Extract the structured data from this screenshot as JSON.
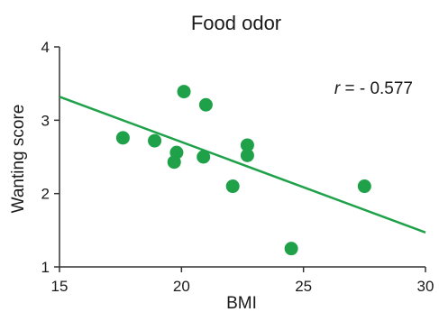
{
  "chart_data": {
    "type": "scatter",
    "title": "Food odor",
    "xlabel": "BMI",
    "ylabel": "Wanting score",
    "xlim": [
      15,
      30
    ],
    "ylim": [
      1,
      4
    ],
    "xticks": [
      15,
      20,
      25,
      30
    ],
    "yticks": [
      1,
      2,
      3,
      4
    ],
    "grid": false,
    "point_color": "#1fa14a",
    "line_color": "#1fa14a",
    "points": [
      {
        "x": 17.6,
        "y": 2.76
      },
      {
        "x": 18.9,
        "y": 2.72
      },
      {
        "x": 19.7,
        "y": 2.43
      },
      {
        "x": 19.8,
        "y": 2.56
      },
      {
        "x": 20.1,
        "y": 3.39
      },
      {
        "x": 20.9,
        "y": 2.5
      },
      {
        "x": 21.0,
        "y": 3.21
      },
      {
        "x": 22.1,
        "y": 2.1
      },
      {
        "x": 22.7,
        "y": 2.66
      },
      {
        "x": 22.7,
        "y": 2.52
      },
      {
        "x": 24.5,
        "y": 1.25
      },
      {
        "x": 27.5,
        "y": 2.1
      }
    ],
    "regression_line": {
      "x": [
        15,
        30
      ],
      "y": [
        3.32,
        1.47
      ]
    },
    "annotation": {
      "r_symbol": "r",
      "text": " = - 0.577"
    }
  }
}
